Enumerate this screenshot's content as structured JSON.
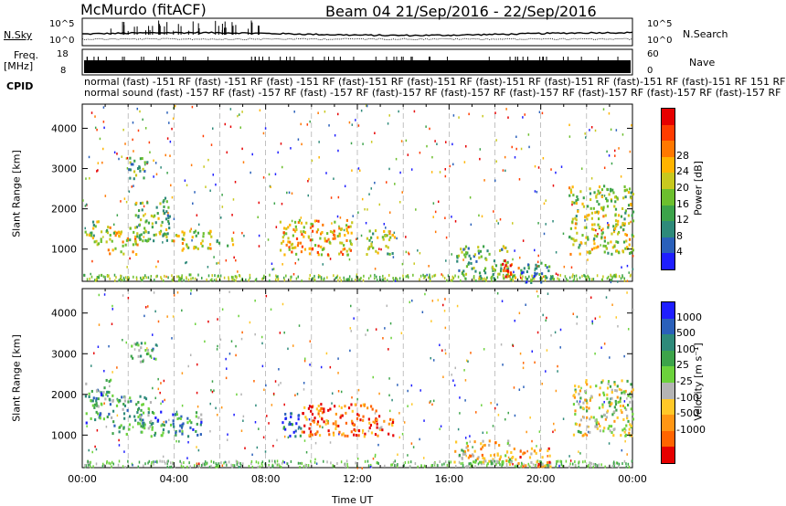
{
  "header": {
    "station": "McMurdo (fitACF)",
    "beam_date": "Beam 04  21/Sep/2016 - 22/Sep/2016"
  },
  "strip_labels": {
    "nsky": "N.Sky",
    "nsky_top": "10^5",
    "nsky_bot": "10^0",
    "nsearch": "N.Search",
    "nsearch_top": "10^5",
    "nsearch_bot": "10^0",
    "freq1": "Freq.",
    "freq2": "[MHz]",
    "freq_top": "18",
    "freq_bot": "8",
    "nave": "Nave",
    "nave_top": "60",
    "nave_bot": "0",
    "cpid": "CPID",
    "cpid_line1": "normal (fast) -151 RF (fast) -151 RF (fast) -151 RF (fast)-151 RF (fast)-151 RF (fast)-151 RF (fast)-151 RF (fast)-151 RF (fast)-151 RF 151 RF",
    "cpid_line2": "normal sound (fast) -157 RF (fast) -157 RF (fast) -157 RF (fast)-157 RF (fast)-157 RF (fast)-157 RF (fast)-157 RF (fast)-157 RF (fast)-157 RF"
  },
  "chart_data": [
    {
      "type": "heatmap",
      "name": "power",
      "ylabel": "Slant Range [km]",
      "xlabel": "Time UT",
      "x_ticks": [
        "00:00",
        "04:00",
        "08:00",
        "12:00",
        "16:00",
        "20:00",
        "00:00"
      ],
      "y_ticks": [
        1000,
        2000,
        3000,
        4000
      ],
      "ylim": [
        200,
        4600
      ],
      "colorbar": {
        "label": "Power [dB]",
        "ticks": [
          "4",
          "8",
          "12",
          "16",
          "20",
          "24",
          "28"
        ],
        "colors": [
          "#1e1eff",
          "#2a60ba",
          "#2e8a7a",
          "#3ca34a",
          "#6cbf2e",
          "#c8c81e",
          "#ffb400",
          "#ff7800",
          "#ff3c00",
          "#e60000"
        ]
      },
      "regions": [
        {
          "t0": 0.1,
          "t1": 0.8,
          "r0": 1100,
          "r1": 1800,
          "v": 0.45
        },
        {
          "t0": 1.0,
          "t1": 2.4,
          "r0": 900,
          "r1": 1600,
          "v": 0.6
        },
        {
          "t0": 2.2,
          "t1": 3.8,
          "r0": 1200,
          "r1": 2300,
          "v": 0.4
        },
        {
          "t0": 3.8,
          "t1": 5.6,
          "r0": 1000,
          "r1": 1500,
          "v": 0.55
        },
        {
          "t0": 2.0,
          "t1": 2.8,
          "r0": 2700,
          "r1": 3300,
          "v": 0.35
        },
        {
          "t0": 5.8,
          "t1": 6.6,
          "r0": 1100,
          "r1": 1300,
          "v": 0.45
        },
        {
          "t0": 8.6,
          "t1": 11.8,
          "r0": 850,
          "r1": 1750,
          "v": 0.65
        },
        {
          "t0": 12.3,
          "t1": 13.6,
          "r0": 900,
          "r1": 1500,
          "v": 0.5
        },
        {
          "t0": 16.3,
          "t1": 18.6,
          "r0": 300,
          "r1": 1100,
          "v": 0.4
        },
        {
          "t0": 18.3,
          "t1": 19.0,
          "r0": 300,
          "r1": 800,
          "v": 0.85
        },
        {
          "t0": 19.0,
          "t1": 20.6,
          "r0": 200,
          "r1": 700,
          "v": 0.3
        },
        {
          "t0": 21.2,
          "t1": 24.0,
          "r0": 900,
          "r1": 2600,
          "v": 0.5
        }
      ]
    },
    {
      "type": "heatmap",
      "name": "velocity",
      "ylabel": "Slant Range [km]",
      "xlabel": "Time UT",
      "x_ticks": [
        "00:00",
        "04:00",
        "08:00",
        "12:00",
        "16:00",
        "20:00",
        "00:00"
      ],
      "y_ticks": [
        1000,
        2000,
        3000,
        4000
      ],
      "ylim": [
        200,
        4600
      ],
      "colorbar": {
        "label": "Velocity [m s⁻¹]",
        "ticks": [
          "1000",
          "500",
          "100",
          "25",
          "-25",
          "-100",
          "-500",
          "-1000"
        ],
        "colors": [
          "#1e1eff",
          "#2a60ba",
          "#2e8a7a",
          "#3ca34a",
          "#6cd23c",
          "#b4b4b4",
          "#ffc828",
          "#ff9614",
          "#ff6400",
          "#e60000"
        ]
      },
      "regions": [
        {
          "t0": 0.1,
          "t1": 1.2,
          "r0": 1300,
          "r1": 2400,
          "v": 0.3
        },
        {
          "t0": 1.2,
          "t1": 3.0,
          "r0": 1000,
          "r1": 2000,
          "v": 0.35
        },
        {
          "t0": 3.0,
          "t1": 5.2,
          "r0": 1000,
          "r1": 1600,
          "v": 0.3
        },
        {
          "t0": 2.0,
          "t1": 3.2,
          "r0": 2800,
          "r1": 3300,
          "v": 0.4
        },
        {
          "t0": 8.6,
          "t1": 9.5,
          "r0": 1000,
          "r1": 1600,
          "v": 0.15
        },
        {
          "t0": 9.5,
          "t1": 12.8,
          "r0": 1000,
          "r1": 1800,
          "v": 0.85
        },
        {
          "t0": 12.8,
          "t1": 13.6,
          "r0": 1000,
          "r1": 1500,
          "v": 0.8
        },
        {
          "t0": 16.2,
          "t1": 18.8,
          "r0": 300,
          "r1": 900,
          "v": 0.6
        },
        {
          "t0": 18.8,
          "t1": 20.4,
          "r0": 250,
          "r1": 700,
          "v": 0.75
        },
        {
          "t0": 21.4,
          "t1": 24.0,
          "r0": 1000,
          "r1": 2400,
          "v": 0.55
        }
      ]
    }
  ]
}
